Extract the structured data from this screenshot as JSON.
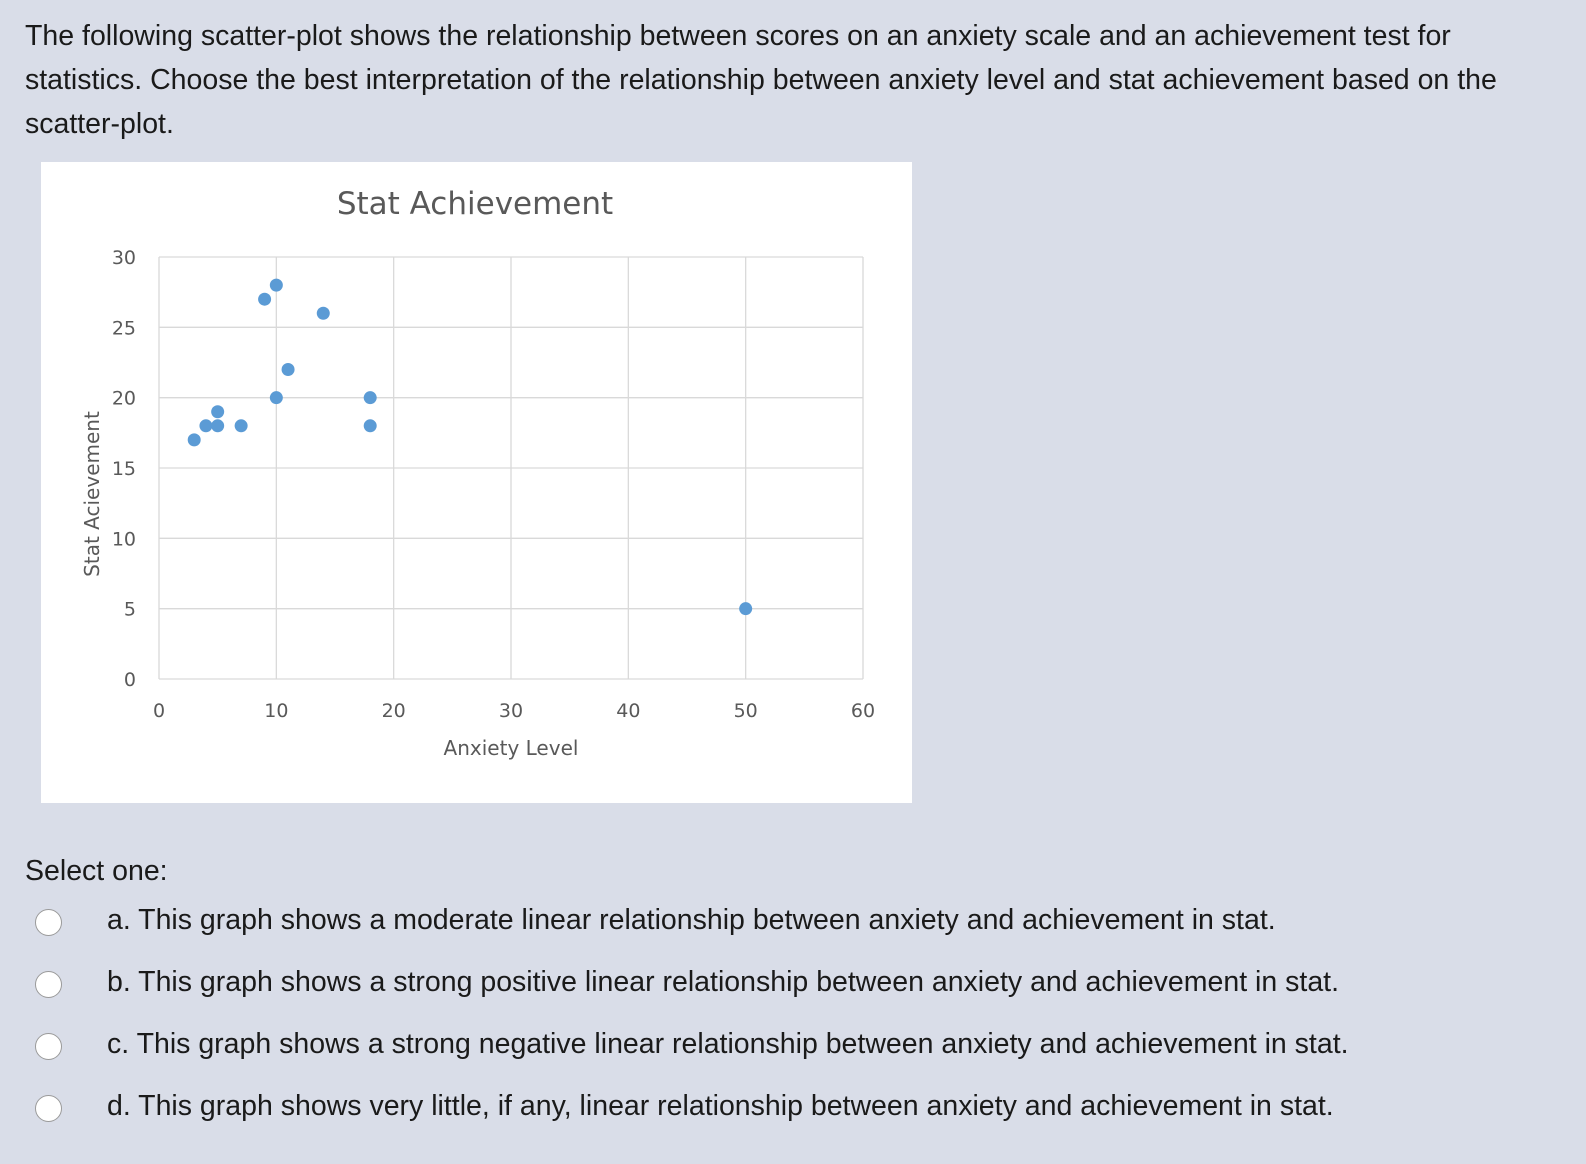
{
  "question": {
    "text": "The following scatter-plot shows the relationship between scores on an anxiety scale and an achievement test for statistics. Choose the best interpretation of the relationship between anxiety level and stat achievement based on the scatter-plot."
  },
  "chart_data": {
    "type": "scatter",
    "title": "Stat Achievement",
    "xlabel": "Anxiety Level",
    "ylabel": "Stat Acievement",
    "xlim": [
      0,
      60
    ],
    "ylim": [
      0,
      30
    ],
    "xticks": [
      0,
      10,
      20,
      30,
      40,
      50,
      60
    ],
    "yticks": [
      0,
      5,
      10,
      15,
      20,
      25,
      30
    ],
    "grid": true,
    "legend": "none",
    "point_color": "#5b9bd5",
    "points": [
      {
        "x": 3,
        "y": 17
      },
      {
        "x": 4,
        "y": 18
      },
      {
        "x": 5,
        "y": 18
      },
      {
        "x": 5,
        "y": 19
      },
      {
        "x": 7,
        "y": 18
      },
      {
        "x": 9,
        "y": 27
      },
      {
        "x": 10,
        "y": 28
      },
      {
        "x": 10,
        "y": 20
      },
      {
        "x": 11,
        "y": 22
      },
      {
        "x": 14,
        "y": 26
      },
      {
        "x": 18,
        "y": 20
      },
      {
        "x": 18,
        "y": 18
      },
      {
        "x": 50,
        "y": 5
      }
    ]
  },
  "answer": {
    "prompt": "Select one:",
    "options": [
      {
        "label": "a. This graph shows a moderate linear relationship between anxiety and achievement in stat.",
        "selected": false
      },
      {
        "label": "b. This graph shows a strong positive linear relationship between anxiety and achievement in stat.",
        "selected": false
      },
      {
        "label": "c. This graph shows a strong negative linear relationship between anxiety and achievement in stat.",
        "selected": false
      },
      {
        "label": "d. This graph shows very little, if any, linear relationship between anxiety and achievement in stat.",
        "selected": false
      }
    ]
  }
}
